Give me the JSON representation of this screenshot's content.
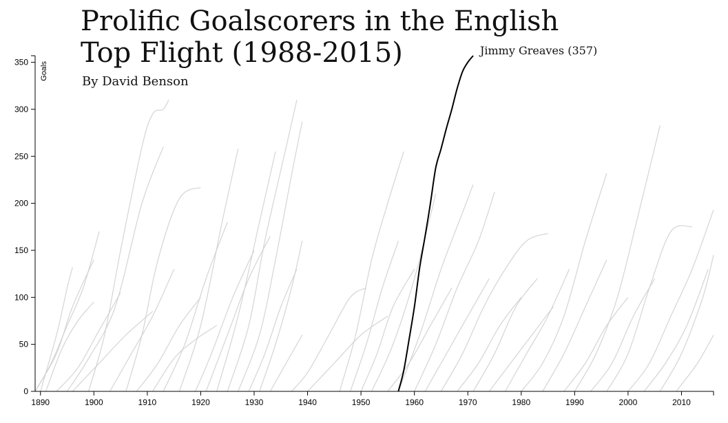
{
  "title_line1": "Prolific Goalscorers in the English",
  "title_line2": "Top Flight (1988-2015)",
  "byline": "By David Benson",
  "chart_data": {
    "type": "line",
    "title": "Prolific Goalscorers in the English Top Flight (1988-2015)",
    "xlabel": "",
    "ylabel": "Goals",
    "xlim": [
      1889,
      2016
    ],
    "ylim": [
      0,
      357
    ],
    "x_ticks": [
      1890,
      1900,
      1910,
      1920,
      1930,
      1940,
      1950,
      1960,
      1970,
      1980,
      1990,
      2000,
      2010
    ],
    "y_ticks": [
      0,
      50,
      100,
      150,
      200,
      250,
      300,
      350
    ],
    "grid": false,
    "highlight": {
      "name": "Jimmy Greaves",
      "label": "Jimmy Greaves (357)",
      "color": "#000000",
      "x": [
        1957,
        1958,
        1959,
        1960,
        1961,
        1962,
        1963,
        1964,
        1965,
        1966,
        1967,
        1968,
        1969,
        1970,
        1971
      ],
      "y": [
        0,
        22,
        55,
        90,
        132,
        165,
        200,
        238,
        258,
        280,
        300,
        322,
        340,
        350,
        357
      ]
    },
    "background_series_color": "#cfcfcf",
    "background_series": [
      {
        "x": [
          1889,
          1893,
          1896,
          1900
        ],
        "y": [
          0,
          40,
          90,
          140
        ]
      },
      {
        "x": [
          1889,
          1892,
          1895,
          1898,
          1901
        ],
        "y": [
          0,
          30,
          70,
          110,
          170
        ]
      },
      {
        "x": [
          1890,
          1893,
          1895,
          1896
        ],
        "y": [
          0,
          60,
          110,
          132
        ]
      },
      {
        "x": [
          1891,
          1894,
          1897,
          1900
        ],
        "y": [
          0,
          45,
          75,
          95
        ]
      },
      {
        "x": [
          1893,
          1897,
          1901,
          1905
        ],
        "y": [
          0,
          25,
          65,
          105
        ]
      },
      {
        "x": [
          1895,
          1899,
          1904,
          1909,
          1913
        ],
        "y": [
          0,
          35,
          90,
          200,
          260
        ]
      },
      {
        "x": [
          1896,
          1901,
          1906,
          1911
        ],
        "y": [
          0,
          30,
          60,
          85
        ]
      },
      {
        "x": [
          1899,
          1902,
          1905,
          1909,
          1911,
          1913,
          1914
        ],
        "y": [
          0,
          60,
          150,
          260,
          295,
          300,
          310
        ]
      },
      {
        "x": [
          1903,
          1907,
          1911,
          1915
        ],
        "y": [
          0,
          40,
          80,
          130
        ]
      },
      {
        "x": [
          1906,
          1909,
          1912,
          1916,
          1920
        ],
        "y": [
          0,
          60,
          140,
          205,
          217
        ]
      },
      {
        "x": [
          1908,
          1912,
          1916,
          1920
        ],
        "y": [
          0,
          30,
          70,
          100
        ]
      },
      {
        "x": [
          1911,
          1915,
          1919,
          1923
        ],
        "y": [
          0,
          35,
          55,
          70
        ]
      },
      {
        "x": [
          1913,
          1917,
          1921,
          1925
        ],
        "y": [
          0,
          50,
          120,
          180
        ]
      },
      {
        "x": [
          1916,
          1920,
          1924,
          1927
        ],
        "y": [
          0,
          70,
          180,
          258
        ]
      },
      {
        "x": [
          1919,
          1922,
          1926,
          1930
        ],
        "y": [
          0,
          40,
          100,
          150
        ]
      },
      {
        "x": [
          1921,
          1925,
          1929,
          1933
        ],
        "y": [
          0,
          60,
          120,
          165
        ]
      },
      {
        "x": [
          1923,
          1927,
          1931,
          1934
        ],
        "y": [
          0,
          80,
          180,
          255
        ]
      },
      {
        "x": [
          1925,
          1929,
          1932,
          1936,
          1938
        ],
        "y": [
          0,
          70,
          160,
          260,
          310
        ]
      },
      {
        "x": [
          1927,
          1931,
          1934,
          1937,
          1939
        ],
        "y": [
          0,
          60,
          140,
          230,
          287
        ]
      },
      {
        "x": [
          1929,
          1932,
          1935,
          1938
        ],
        "y": [
          0,
          40,
          90,
          130
        ]
      },
      {
        "x": [
          1931,
          1934,
          1937,
          1939
        ],
        "y": [
          0,
          50,
          110,
          160
        ]
      },
      {
        "x": [
          1933,
          1936,
          1939
        ],
        "y": [
          0,
          30,
          60
        ]
      },
      {
        "x": [
          1937,
          1940,
          1944,
          1948,
          1951
        ],
        "y": [
          0,
          20,
          60,
          100,
          110
        ]
      },
      {
        "x": [
          1940,
          1945,
          1950,
          1955
        ],
        "y": [
          0,
          30,
          60,
          80
        ]
      },
      {
        "x": [
          1946,
          1949,
          1952,
          1955,
          1958
        ],
        "y": [
          0,
          60,
          140,
          200,
          255
        ]
      },
      {
        "x": [
          1948,
          1951,
          1954,
          1957
        ],
        "y": [
          0,
          50,
          110,
          160
        ]
      },
      {
        "x": [
          1950,
          1953,
          1956,
          1960
        ],
        "y": [
          0,
          40,
          90,
          130
        ]
      },
      {
        "x": [
          1952,
          1956,
          1960,
          1964
        ],
        "y": [
          0,
          50,
          120,
          210
        ]
      },
      {
        "x": [
          1955,
          1959,
          1963,
          1967
        ],
        "y": [
          0,
          30,
          70,
          110
        ]
      },
      {
        "x": [
          1957,
          1961,
          1965,
          1969,
          1971
        ],
        "y": [
          0,
          60,
          130,
          190,
          220
        ]
      },
      {
        "x": [
          1960,
          1964,
          1968,
          1972,
          1975
        ],
        "y": [
          0,
          50,
          110,
          160,
          212
        ]
      },
      {
        "x": [
          1962,
          1966,
          1970,
          1974
        ],
        "y": [
          0,
          40,
          80,
          120
        ]
      },
      {
        "x": [
          1965,
          1969,
          1973,
          1977,
          1981,
          1985
        ],
        "y": [
          0,
          40,
          90,
          130,
          160,
          168
        ]
      },
      {
        "x": [
          1968,
          1972,
          1976,
          1980
        ],
        "y": [
          0,
          30,
          70,
          100
        ]
      },
      {
        "x": [
          1971,
          1975,
          1979,
          1983
        ],
        "y": [
          0,
          40,
          90,
          120
        ]
      },
      {
        "x": [
          1974,
          1978,
          1982,
          1986
        ],
        "y": [
          0,
          30,
          60,
          90
        ]
      },
      {
        "x": [
          1977,
          1981,
          1985,
          1989
        ],
        "y": [
          0,
          40,
          80,
          130
        ]
      },
      {
        "x": [
          1980,
          1984,
          1988,
          1992,
          1996
        ],
        "y": [
          0,
          30,
          80,
          160,
          232
        ]
      },
      {
        "x": [
          1984,
          1988,
          1992,
          1996
        ],
        "y": [
          0,
          40,
          90,
          140
        ]
      },
      {
        "x": [
          1988,
          1992,
          1996,
          2000
        ],
        "y": [
          0,
          30,
          70,
          100
        ]
      },
      {
        "x": [
          1990,
          1994,
          1998,
          2002,
          2006
        ],
        "y": [
          0,
          40,
          100,
          190,
          283
        ]
      },
      {
        "x": [
          1993,
          1997,
          2001,
          2005
        ],
        "y": [
          0,
          30,
          80,
          120
        ]
      },
      {
        "x": [
          1996,
          2000,
          2004,
          2008,
          2012
        ],
        "y": [
          0,
          40,
          110,
          170,
          175
        ]
      },
      {
        "x": [
          2000,
          2004,
          2008,
          2012,
          2016
        ],
        "y": [
          0,
          30,
          80,
          130,
          193
        ]
      },
      {
        "x": [
          2003,
          2007,
          2011,
          2015
        ],
        "y": [
          0,
          30,
          70,
          130
        ]
      },
      {
        "x": [
          2006,
          2010,
          2014,
          2016
        ],
        "y": [
          0,
          40,
          100,
          145
        ]
      },
      {
        "x": [
          2009,
          2013,
          2016
        ],
        "y": [
          0,
          30,
          60
        ]
      }
    ]
  }
}
